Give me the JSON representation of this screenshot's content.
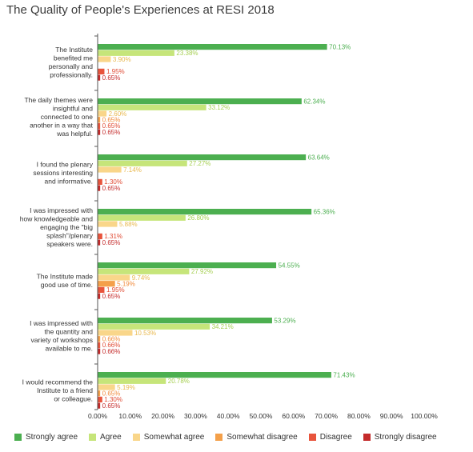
{
  "title": "The Quality of People's Experiences at RESI 2018",
  "colors": {
    "Strongly agree": "#4caf50",
    "Agree": "#c6e57a",
    "Somewhat agree": "#f9d68a",
    "Somewhat disagree": "#f4a04a",
    "Disagree": "#e8543c",
    "Strongly disagree": "#c42b2b"
  },
  "label_colors": {
    "Strongly agree": "#4caf50",
    "Agree": "#a6cf53",
    "Somewhat agree": "#e8b84e",
    "Somewhat disagree": "#f08a3a",
    "Disagree": "#e04a33",
    "Strongly disagree": "#c42b2b"
  },
  "legend": [
    "Strongly agree",
    "Agree",
    "Somewhat agree",
    "Somewhat disagree",
    "Disagree",
    "Strongly disagree"
  ],
  "chart_data": {
    "type": "bar",
    "orientation": "horizontal",
    "title": "The Quality of People's Experiences at RESI 2018",
    "xlim": [
      0,
      100
    ],
    "x_ticks": [
      "0.00%",
      "10.00%",
      "20.00%",
      "30.00%",
      "40.00%",
      "50.00%",
      "60.00%",
      "70.00%",
      "80.00%",
      "90.00%",
      "100.00%"
    ],
    "categories": [
      [
        "The Institute",
        "benefited me",
        "personally and",
        "professionally."
      ],
      [
        "The daily themes were",
        "insightful and",
        "connected to one",
        "another in a way that",
        "was helpful."
      ],
      [
        "I found the plenary",
        "sessions interesting",
        "and informative."
      ],
      [
        "I was impressed with",
        "how knowledgeable and",
        "engaging the \"big",
        "splash\"/plenary",
        "speakers were."
      ],
      [
        "The Institute made",
        "good use of time."
      ],
      [
        "I was impressed with",
        "the quantity and",
        "variety of workshops",
        "available to me."
      ],
      [
        "I would recommend the",
        "Institute to a friend",
        "or colleague."
      ]
    ],
    "series": [
      {
        "name": "Strongly agree",
        "values": [
          70.13,
          62.34,
          63.64,
          65.36,
          54.55,
          53.29,
          71.43
        ]
      },
      {
        "name": "Agree",
        "values": [
          23.38,
          33.12,
          27.27,
          26.8,
          27.92,
          34.21,
          20.78
        ]
      },
      {
        "name": "Somewhat agree",
        "values": [
          3.9,
          2.6,
          7.14,
          5.88,
          9.74,
          10.53,
          5.19
        ]
      },
      {
        "name": "Somewhat disagree",
        "values": [
          0.0,
          0.65,
          0.0,
          0.0,
          5.19,
          0.66,
          0.65
        ]
      },
      {
        "name": "Disagree",
        "values": [
          1.95,
          0.65,
          1.3,
          1.31,
          1.95,
          0.66,
          1.3
        ]
      },
      {
        "name": "Strongly disagree",
        "values": [
          0.65,
          0.65,
          0.65,
          0.65,
          0.65,
          0.66,
          0.65
        ]
      }
    ],
    "value_labels": [
      [
        "70.13%",
        "23.38%",
        "3.90%",
        "",
        "1.95%",
        "0.65%"
      ],
      [
        "62.34%",
        "33.12%",
        "2.60%",
        "0.65%",
        "0.65%",
        "0.65%"
      ],
      [
        "63.64%",
        "27.27%",
        "7.14%",
        "",
        "1.30%",
        "0.65%"
      ],
      [
        "65.36%",
        "26.80%",
        "5.88%",
        "",
        "1.31%",
        "0.65%"
      ],
      [
        "54.55%",
        "27.92%",
        "9.74%",
        "5.19%",
        "1.95%",
        "0.65%"
      ],
      [
        "53.29%",
        "34.21%",
        "10.53%",
        "0.66%",
        "0.66%",
        "0.66%"
      ],
      [
        "71.43%",
        "20.78%",
        "5.19%",
        "0.65%",
        "1.30%",
        "0.65%"
      ]
    ]
  }
}
